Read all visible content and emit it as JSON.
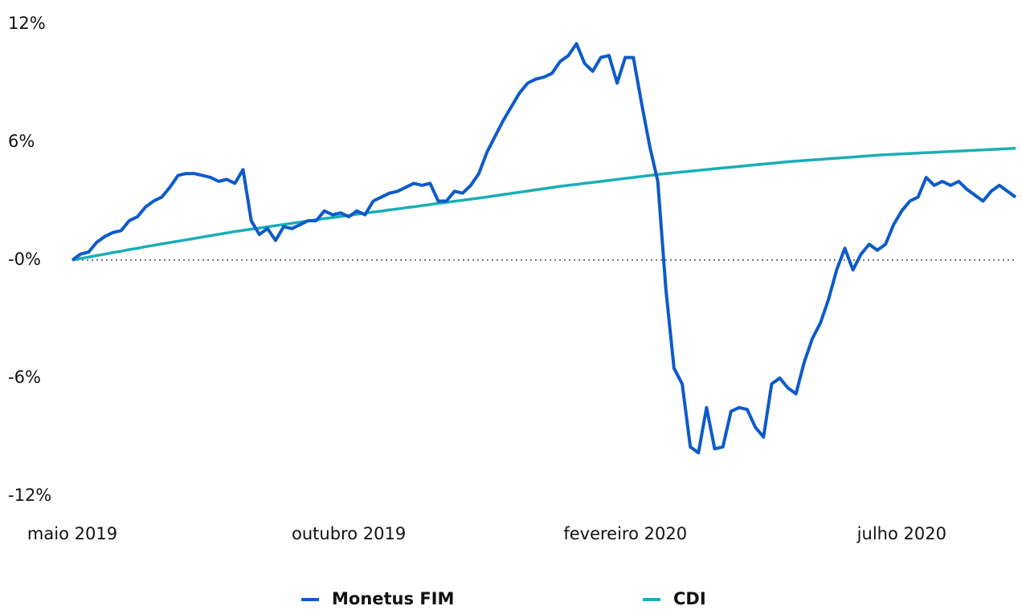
{
  "chart_data": {
    "type": "line",
    "categories": [
      "maio 2019",
      null,
      null,
      null,
      null,
      null,
      null,
      null,
      null,
      null,
      null,
      null,
      null,
      null,
      null,
      null,
      null,
      null,
      null,
      null,
      null,
      null,
      null,
      null,
      null,
      null,
      null,
      null,
      null,
      null,
      null,
      null,
      null,
      null,
      "outubro 2019",
      null,
      null,
      null,
      null,
      null,
      null,
      null,
      null,
      null,
      null,
      null,
      null,
      null,
      null,
      null,
      null,
      null,
      null,
      null,
      null,
      null,
      null,
      null,
      null,
      null,
      null,
      null,
      null,
      null,
      null,
      null,
      null,
      null,
      "fevereiro 2020",
      null,
      null,
      null,
      null,
      null,
      null,
      null,
      null,
      null,
      null,
      null,
      null,
      null,
      null,
      null,
      null,
      null,
      null,
      null,
      null,
      null,
      null,
      null,
      null,
      null,
      null,
      null,
      null,
      null,
      null,
      null,
      null,
      null,
      "julho 2020",
      null,
      null,
      null,
      null,
      null,
      null,
      null,
      null,
      null,
      null,
      null,
      null,
      null,
      null
    ],
    "series": [
      {
        "name": "Monetus FIM",
        "color": "#0d5bc9",
        "values": [
          0,
          0.3,
          0.4,
          0.9,
          1.2,
          1.4,
          1.5,
          2.0,
          2.2,
          2.7,
          3.0,
          3.2,
          3.7,
          4.3,
          4.4,
          4.4,
          4.3,
          4.2,
          4.0,
          4.1,
          3.9,
          4.6,
          2.0,
          1.3,
          1.6,
          1.0,
          1.7,
          1.6,
          1.8,
          2.0,
          2.0,
          2.5,
          2.3,
          2.4,
          2.2,
          2.5,
          2.3,
          3.0,
          3.2,
          3.4,
          3.5,
          3.7,
          3.9,
          3.8,
          3.9,
          3.0,
          3.0,
          3.5,
          3.4,
          3.8,
          4.4,
          5.5,
          6.3,
          7.1,
          7.8,
          8.5,
          9.0,
          9.2,
          9.3,
          9.5,
          10.1,
          10.4,
          11.0,
          10.0,
          9.6,
          10.3,
          10.4,
          9.0,
          10.3,
          10.3,
          8.0,
          5.8,
          4.0,
          -1.5,
          -5.5,
          -6.3,
          -9.5,
          -9.8,
          -7.5,
          -9.6,
          -9.5,
          -7.7,
          -7.5,
          -7.6,
          -8.5,
          -9.0,
          -6.3,
          -6.0,
          -6.5,
          -6.8,
          -5.2,
          -4.0,
          -3.2,
          -2.0,
          -0.5,
          0.6,
          -0.5,
          0.3,
          0.8,
          0.5,
          0.8,
          1.8,
          2.5,
          3.0,
          3.2,
          4.2,
          3.8,
          4.0,
          3.8,
          4.0,
          3.6,
          3.3,
          3.0,
          3.5,
          3.8,
          3.5,
          3.2
        ]
      },
      {
        "name": "CDI",
        "color": "#1aaeb6",
        "values": [
          0,
          0.08,
          0.15,
          0.23,
          0.3,
          0.38,
          0.45,
          0.53,
          0.6,
          0.68,
          0.75,
          0.82,
          0.89,
          0.96,
          1.03,
          1.1,
          1.17,
          1.24,
          1.31,
          1.38,
          1.45,
          1.51,
          1.57,
          1.63,
          1.69,
          1.75,
          1.81,
          1.87,
          1.93,
          1.99,
          2.05,
          2.11,
          2.16,
          2.22,
          2.27,
          2.33,
          2.38,
          2.44,
          2.49,
          2.55,
          2.6,
          2.66,
          2.71,
          2.77,
          2.82,
          2.88,
          2.93,
          2.99,
          3.04,
          3.1,
          3.15,
          3.21,
          3.27,
          3.33,
          3.39,
          3.45,
          3.51,
          3.57,
          3.63,
          3.69,
          3.75,
          3.8,
          3.85,
          3.9,
          3.95,
          4.0,
          4.05,
          4.1,
          4.15,
          4.2,
          4.25,
          4.3,
          4.35,
          4.4,
          4.44,
          4.48,
          4.52,
          4.56,
          4.6,
          4.64,
          4.68,
          4.72,
          4.76,
          4.8,
          4.84,
          4.88,
          4.92,
          4.96,
          5.0,
          5.03,
          5.06,
          5.09,
          5.12,
          5.15,
          5.18,
          5.21,
          5.24,
          5.27,
          5.3,
          5.33,
          5.36,
          5.38,
          5.4,
          5.42,
          5.44,
          5.46,
          5.48,
          5.5,
          5.52,
          5.54,
          5.56,
          5.58,
          5.6,
          5.62,
          5.64,
          5.66,
          5.68
        ]
      }
    ],
    "ylim": [
      -12,
      12
    ],
    "yticks": [
      {
        "value": 12,
        "label": "12%"
      },
      {
        "value": 6,
        "label": "6%"
      },
      {
        "value": 0,
        "label": "-0%"
      },
      {
        "value": -6,
        "label": "-6%"
      },
      {
        "value": -12,
        "label": "-12%"
      }
    ],
    "legend": "bottom"
  }
}
